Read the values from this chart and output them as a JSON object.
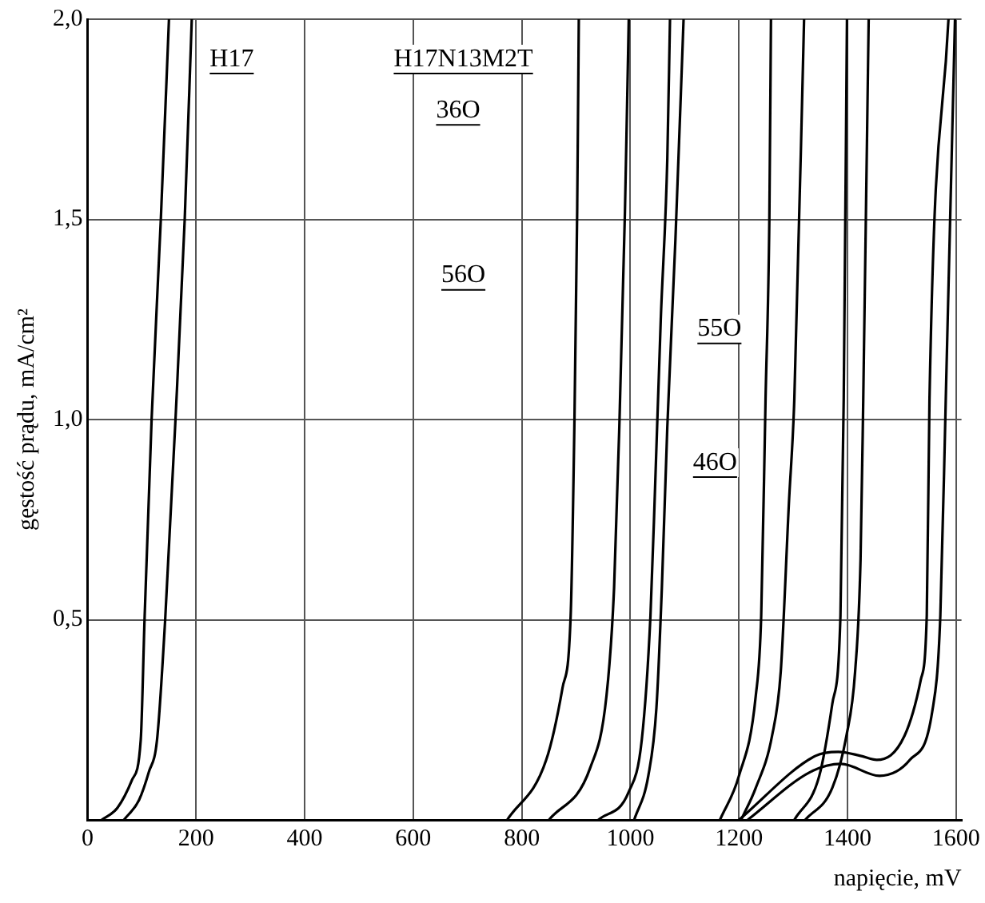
{
  "chart_data": {
    "type": "line",
    "xlabel": "napięcie, mV",
    "ylabel": "gęstość prądu, mA/cm²",
    "xlim": [
      0,
      1610
    ],
    "ylim": [
      0,
      2
    ],
    "xticks": [
      0,
      200,
      400,
      600,
      800,
      1000,
      1200,
      1400,
      1600
    ],
    "yticks": [
      {
        "value": 0,
        "label": null
      },
      {
        "value": 0.5,
        "label": "0,5"
      },
      {
        "value": 1,
        "label": "1,0"
      },
      {
        "value": 1.5,
        "label": "1,5"
      },
      {
        "value": 2,
        "label": "2,0"
      }
    ],
    "grid": true,
    "legend": false,
    "marker": "none",
    "line_style": "solid",
    "series": [
      {
        "color": "#000000",
        "x": [
          26,
          55,
          82,
          98,
          105,
          118,
          135,
          150
        ],
        "values": [
          0,
          0.03,
          0.1,
          0.2,
          0.5,
          1.0,
          1.5,
          2.0
        ]
      },
      {
        "color": "#000000",
        "x": [
          67,
          95,
          113,
          128,
          143,
          162,
          179,
          192
        ],
        "values": [
          0,
          0.05,
          0.12,
          0.2,
          0.5,
          1.0,
          1.5,
          2.0
        ]
      },
      {
        "color": "#000000",
        "x": [
          773,
          845,
          875,
          890,
          897,
          902,
          905
        ],
        "values": [
          0,
          0.15,
          0.33,
          0.51,
          1.0,
          1.52,
          2.0
        ]
      },
      {
        "color": "#000000",
        "x": [
          850,
          926,
          956,
          970,
          980,
          990,
          997
        ],
        "values": [
          0,
          0.13,
          0.31,
          0.58,
          1.0,
          1.52,
          2.0
        ]
      },
      {
        "color": "#000000",
        "x": [
          941,
          997,
          1021,
          1037,
          1046,
          1056,
          1068,
          1073
        ],
        "values": [
          0,
          0.07,
          0.2,
          0.51,
          0.85,
          1.25,
          1.65,
          2.0
        ]
      },
      {
        "color": "#000000",
        "x": [
          1007,
          1033,
          1048,
          1058,
          1068,
          1083,
          1098
        ],
        "values": [
          0,
          0.11,
          0.28,
          0.58,
          0.98,
          1.45,
          2.0
        ]
      },
      {
        "color": "#000000",
        "x": [
          1165,
          1200,
          1231,
          1241,
          1249,
          1256,
          1259
        ],
        "values": [
          0,
          0.11,
          0.31,
          0.51,
          1.05,
          1.5,
          2.0
        ]
      },
      {
        "color": "#000000",
        "x": [
          1204,
          1231,
          1261,
          1277,
          1292,
          1302,
          1320
        ],
        "values": [
          0,
          0.08,
          0.21,
          0.37,
          0.79,
          1.05,
          2.0
        ]
      },
      {
        "color": "#000000",
        "x": [
          1302,
          1348,
          1372,
          1387,
          1393,
          1399
        ],
        "values": [
          0,
          0.11,
          0.29,
          0.51,
          1.05,
          2.0
        ]
      },
      {
        "color": "#000000",
        "x": [
          1322,
          1372,
          1398,
          1414,
          1424,
          1429,
          1439
        ],
        "values": [
          0,
          0.08,
          0.21,
          0.37,
          0.65,
          1.05,
          2.0
        ]
      },
      {
        "color": "#000000",
        "x": [
          1200,
          1341,
          1383,
          1424,
          1454,
          1505,
          1535,
          1546,
          1551,
          1586
        ],
        "values": [
          0,
          0.16,
          0.17,
          0.16,
          0.15,
          0.21,
          0.35,
          0.51,
          1.05,
          2.0
        ]
      },
      {
        "color": "#000000",
        "x": [
          1216,
          1332,
          1388,
          1459,
          1515,
          1556,
          1571,
          1581,
          1598
        ],
        "values": [
          0,
          0.12,
          0.14,
          0.11,
          0.15,
          0.27,
          0.51,
          1.05,
          2.0
        ]
      }
    ],
    "annotations": [
      "H17",
      "H17N13M2T",
      "36O",
      "56O",
      "55O",
      "46O"
    ]
  }
}
